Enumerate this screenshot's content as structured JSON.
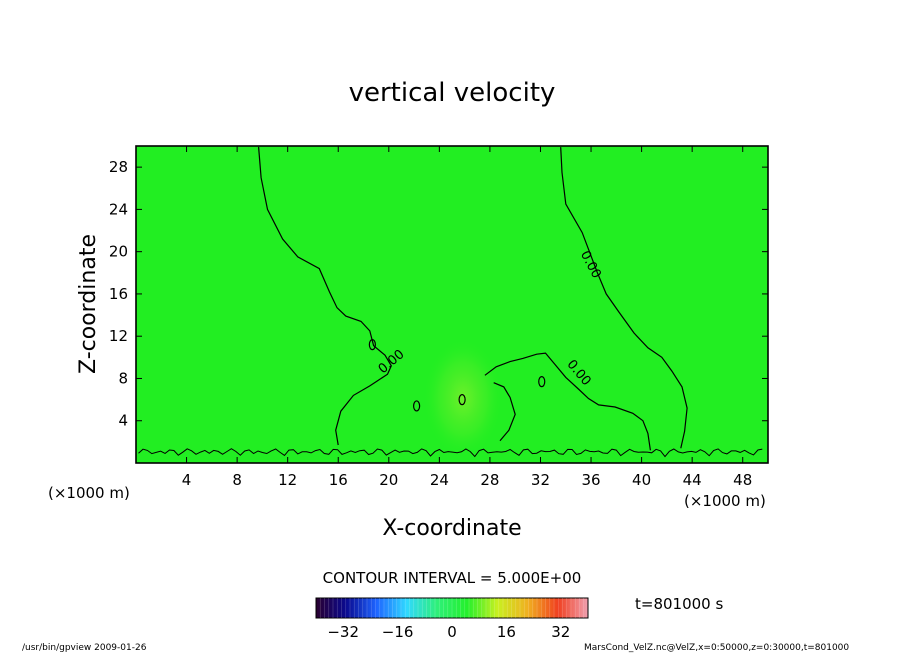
{
  "chart_data": {
    "type": "heatmap",
    "title": "vertical velocity",
    "xlabel": "X-coordinate",
    "ylabel": "Z-coordinate",
    "x_unit": "(×1000 m)",
    "y_unit": "(×1000 m)",
    "xlim": [
      0,
      50
    ],
    "ylim": [
      0,
      30
    ],
    "xticks": [
      4,
      8,
      12,
      16,
      20,
      24,
      28,
      32,
      36,
      40,
      44,
      48
    ],
    "yticks": [
      4,
      8,
      12,
      16,
      20,
      24,
      28
    ],
    "contour_interval_label": "CONTOUR INTERVAL = 5.000E+00",
    "contour_label": "0.00",
    "time_label": "t=801000 s",
    "colorbar": {
      "range": [
        -40,
        40
      ],
      "ticks": [
        -32,
        -16,
        0,
        16,
        32
      ],
      "colors": [
        "#2a0030",
        "#0a0a90",
        "#1e64ff",
        "#30d8ff",
        "#2ef07a",
        "#24f02c",
        "#c8f020",
        "#f0b020",
        "#f04020",
        "#f0a0b0"
      ]
    },
    "field_color": "#22ee22",
    "contours_left": [
      [
        9.7,
        29.9
      ],
      [
        9.9,
        27
      ],
      [
        10.4,
        24
      ],
      [
        11.6,
        21.2
      ],
      [
        12.8,
        19.5
      ],
      [
        14.5,
        18.4
      ],
      [
        15.3,
        16.2
      ],
      [
        15.9,
        14.7
      ],
      [
        16.6,
        13.9
      ],
      [
        17.8,
        13.4
      ],
      [
        18.5,
        12.5
      ],
      [
        18.8,
        11.1
      ],
      [
        19.7,
        10.2
      ],
      [
        20.2,
        9.2
      ],
      [
        19.9,
        8.4
      ],
      [
        18.5,
        7.3
      ],
      [
        17.2,
        6.4
      ],
      [
        16.2,
        4.9
      ],
      [
        15.8,
        3.1
      ],
      [
        16,
        1.7
      ]
    ],
    "contours_right": [
      [
        33.6,
        29.9
      ],
      [
        33.7,
        27.5
      ],
      [
        34,
        24.5
      ],
      [
        35.3,
        21.8
      ],
      [
        36.5,
        18
      ],
      [
        37.2,
        16
      ],
      [
        38.2,
        14.3
      ],
      [
        39.4,
        12.3
      ],
      [
        40.5,
        10.9
      ],
      [
        41.6,
        10
      ],
      [
        42.4,
        8.7
      ],
      [
        43.2,
        7.2
      ],
      [
        43.6,
        5.2
      ],
      [
        43.4,
        3
      ],
      [
        43.1,
        1.4
      ]
    ],
    "contours_mid": [
      [
        27.6,
        8.3
      ],
      [
        28.5,
        9.1
      ],
      [
        29.6,
        9.6
      ],
      [
        30.6,
        9.9
      ],
      [
        31.7,
        10.3
      ],
      [
        32.4,
        10.4
      ],
      [
        33.1,
        9.4
      ],
      [
        34,
        8.1
      ],
      [
        35,
        7
      ],
      [
        35.8,
        6.1
      ],
      [
        36.6,
        5.5
      ],
      [
        37.9,
        5.3
      ],
      [
        39.3,
        4.7
      ],
      [
        40.1,
        4
      ],
      [
        40.5,
        2.8
      ],
      [
        40.7,
        1.2
      ]
    ],
    "contour_dips": [
      [
        28.3,
        7.6
      ],
      [
        29.1,
        7.2
      ],
      [
        29.6,
        6.2
      ],
      [
        30,
        4.6
      ],
      [
        29.5,
        3.1
      ],
      [
        28.8,
        2.1
      ]
    ],
    "small_loops": [
      [
        22.2,
        5.4
      ],
      [
        25.8,
        6
      ],
      [
        32.1,
        7.7
      ],
      [
        18.7,
        11.2
      ]
    ],
    "footer_left": "/usr/bin/gpview   2009-01-26",
    "footer_right": "MarsCond_VelZ.nc@VelZ,x=0:50000,z=0:30000,t=801000"
  }
}
